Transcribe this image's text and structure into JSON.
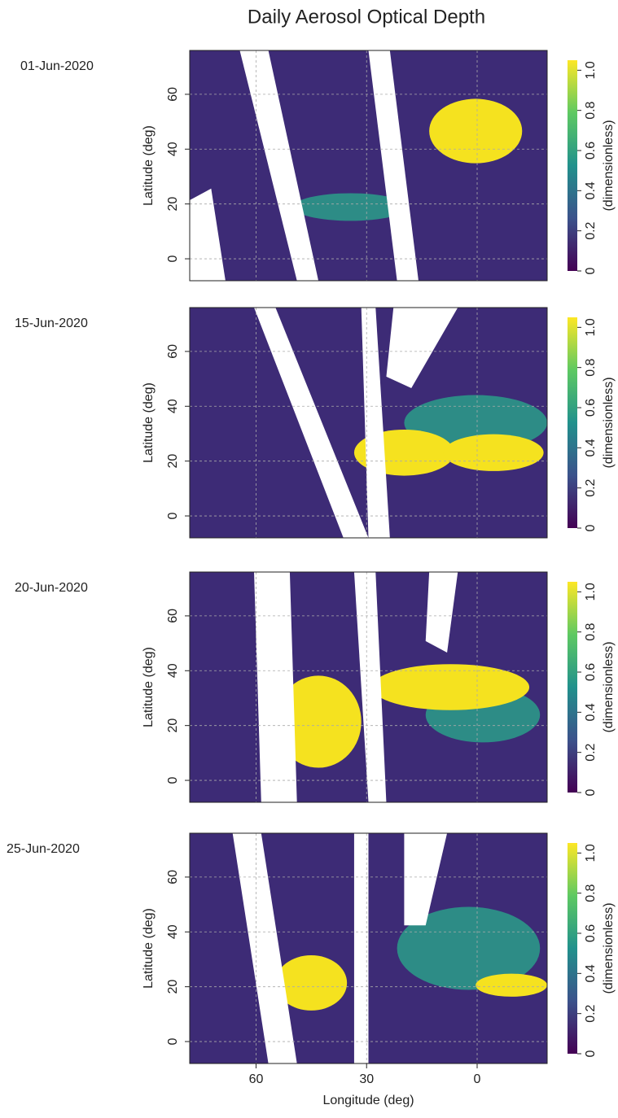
{
  "title": "Daily Aerosol Optical Depth",
  "chart_data": [
    {
      "type": "map",
      "date": "01-Jun-2020",
      "ylabel": "Latitude (deg)",
      "ylim": [
        -8,
        76
      ],
      "yticks": [
        0,
        20,
        40,
        60
      ],
      "xlim": [
        78,
        -19
      ],
      "xticks": [
        60,
        30,
        0
      ],
      "colorbar": {
        "label": "(dimensionless)",
        "lim": [
          0,
          1.05
        ],
        "ticks": [
          0,
          0.2,
          0.4,
          0.6,
          0.8,
          {
            "value": 1,
            "label": "1.0"
          }
        ]
      }
    },
    {
      "type": "map",
      "date": "15-Jun-2020",
      "ylabel": "Latitude (deg)",
      "ylim": [
        -8,
        76
      ],
      "yticks": [
        0,
        20,
        40,
        60
      ],
      "xlim": [
        78,
        -19
      ],
      "xticks": [
        60,
        30,
        0
      ],
      "colorbar": {
        "label": "(dimensionless)",
        "lim": [
          0,
          1.05
        ],
        "ticks": [
          0,
          0.2,
          0.4,
          0.6,
          0.8,
          {
            "value": 1,
            "label": "1.0"
          }
        ]
      }
    },
    {
      "type": "map",
      "date": "20-Jun-2020",
      "ylabel": "Latitude (deg)",
      "ylim": [
        -8,
        76
      ],
      "yticks": [
        0,
        20,
        40,
        60
      ],
      "xlim": [
        78,
        -19
      ],
      "xticks": [
        60,
        30,
        0
      ],
      "colorbar": {
        "label": "(dimensionless)",
        "lim": [
          0,
          1.05
        ],
        "ticks": [
          0,
          0.2,
          0.4,
          0.6,
          0.8,
          {
            "value": 1,
            "label": "1.0"
          }
        ]
      }
    },
    {
      "type": "map",
      "date": "25-Jun-2020",
      "ylabel": "Latitude (deg)",
      "xlabel": "Longitude (deg)",
      "ylim": [
        -8,
        76
      ],
      "yticks": [
        0,
        20,
        40,
        60
      ],
      "xlim": [
        78,
        -19
      ],
      "xticks": [
        60,
        30,
        0
      ],
      "colorbar": {
        "label": "(dimensionless)",
        "lim": [
          0,
          1.05
        ],
        "ticks": [
          0,
          0.2,
          0.4,
          0.6,
          0.8,
          {
            "value": 1,
            "label": "1.0"
          }
        ]
      }
    }
  ]
}
